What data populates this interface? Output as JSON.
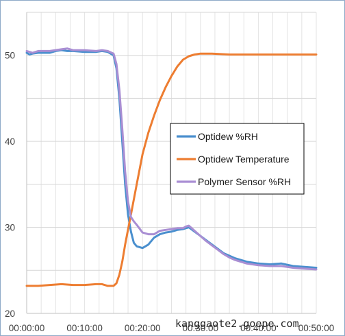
{
  "chart_data": {
    "type": "line",
    "title": "",
    "xlabel": "",
    "ylabel": "",
    "xlim": [
      0,
      50
    ],
    "ylim": [
      20,
      55
    ],
    "grid": true,
    "legend_position": "center-right",
    "x_tick_labels": [
      "00:00:00",
      "00:10:00",
      "00:20:00",
      "00:30:00",
      "00:40:00",
      "00:50:00"
    ],
    "y_tick_labels": [
      "20",
      "30",
      "40",
      "50"
    ],
    "series": [
      {
        "name": "Optidew %RH",
        "color": "#4a8fce",
        "x": [
          0,
          0.5,
          1,
          2,
          4,
          5,
          6,
          7,
          8,
          10,
          12,
          13,
          14,
          15,
          15.5,
          16,
          16.5,
          17,
          17.5,
          18,
          18.5,
          19,
          20,
          21,
          22,
          23,
          24,
          25,
          26,
          27,
          27.5,
          28,
          29,
          30,
          31,
          32,
          33,
          34,
          35,
          36,
          38,
          40,
          42,
          44,
          46,
          48,
          50
        ],
        "y": [
          50.3,
          50.1,
          50.2,
          50.3,
          50.3,
          50.5,
          50.6,
          50.5,
          50.5,
          50.4,
          50.4,
          50.5,
          50.4,
          50.0,
          48.5,
          45.0,
          40.0,
          35.0,
          31.5,
          29.5,
          28.2,
          27.8,
          27.6,
          28.0,
          28.8,
          29.2,
          29.4,
          29.5,
          29.7,
          29.8,
          29.9,
          30.0,
          29.5,
          29.0,
          28.5,
          28.0,
          27.5,
          27.0,
          26.7,
          26.4,
          26.0,
          25.8,
          25.7,
          25.8,
          25.5,
          25.4,
          25.3
        ]
      },
      {
        "name": "Optidew Temperature",
        "color": "#ed7d31",
        "x": [
          0,
          2,
          4,
          6,
          8,
          10,
          12,
          13,
          14,
          15,
          15.5,
          16,
          16.5,
          17,
          18,
          19,
          20,
          21,
          22,
          23,
          24,
          25,
          26,
          27,
          28,
          29,
          30,
          32,
          35,
          40,
          45,
          50
        ],
        "y": [
          23.2,
          23.2,
          23.3,
          23.4,
          23.3,
          23.3,
          23.4,
          23.4,
          23.2,
          23.2,
          23.5,
          24.5,
          26.0,
          28.0,
          31.5,
          35.0,
          38.5,
          41.0,
          43.0,
          44.8,
          46.3,
          47.6,
          48.7,
          49.5,
          49.9,
          50.1,
          50.2,
          50.2,
          50.1,
          50.1,
          50.1,
          50.1
        ]
      },
      {
        "name": "Polymer Sensor %RH",
        "color": "#a98ed3",
        "x": [
          0,
          1,
          2,
          4,
          6,
          7,
          8,
          10,
          12,
          13,
          14,
          15,
          15.5,
          16,
          16.5,
          17,
          17.5,
          18,
          18.5,
          19,
          20,
          21,
          22,
          23,
          24,
          25,
          26,
          27,
          27.5,
          28,
          29,
          30,
          31,
          32,
          33,
          34,
          35,
          36,
          38,
          40,
          42,
          44,
          46,
          48,
          50
        ],
        "y": [
          50.5,
          50.3,
          50.5,
          50.5,
          50.7,
          50.8,
          50.6,
          50.6,
          50.5,
          50.6,
          50.5,
          50.2,
          49.0,
          46.0,
          41.5,
          36.5,
          33.0,
          31.2,
          30.7,
          30.3,
          29.4,
          29.2,
          29.2,
          29.6,
          29.7,
          29.8,
          29.9,
          29.9,
          30.1,
          30.2,
          29.6,
          29.0,
          28.4,
          27.9,
          27.4,
          26.9,
          26.5,
          26.2,
          25.8,
          25.6,
          25.5,
          25.5,
          25.3,
          25.2,
          25.1
        ]
      }
    ]
  },
  "watermark": "kanggaote2.goepe.com"
}
